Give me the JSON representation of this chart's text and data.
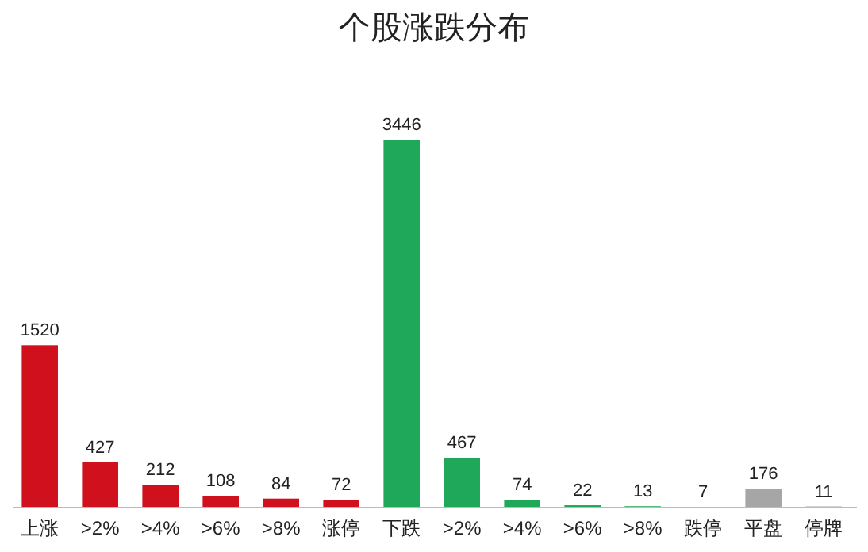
{
  "chart_data": {
    "type": "bar",
    "title": "个股涨跌分布",
    "categories": [
      "上涨",
      ">2%",
      ">4%",
      ">6%",
      ">8%",
      "涨停",
      "下跌",
      ">2%",
      ">4%",
      ">6%",
      ">8%",
      "跌停",
      "平盘",
      "停牌"
    ],
    "values": [
      1520,
      427,
      212,
      108,
      84,
      72,
      3446,
      467,
      74,
      22,
      13,
      7,
      176,
      11
    ],
    "colors": [
      "#d0101c",
      "#d0101c",
      "#d0101c",
      "#d0101c",
      "#d0101c",
      "#d0101c",
      "#1fa85a",
      "#1fa85a",
      "#1fa85a",
      "#1fa85a",
      "#1fa85a",
      "#1fa85a",
      "#a6a6a6",
      "#a6a6a6"
    ],
    "data_labels": true
  }
}
